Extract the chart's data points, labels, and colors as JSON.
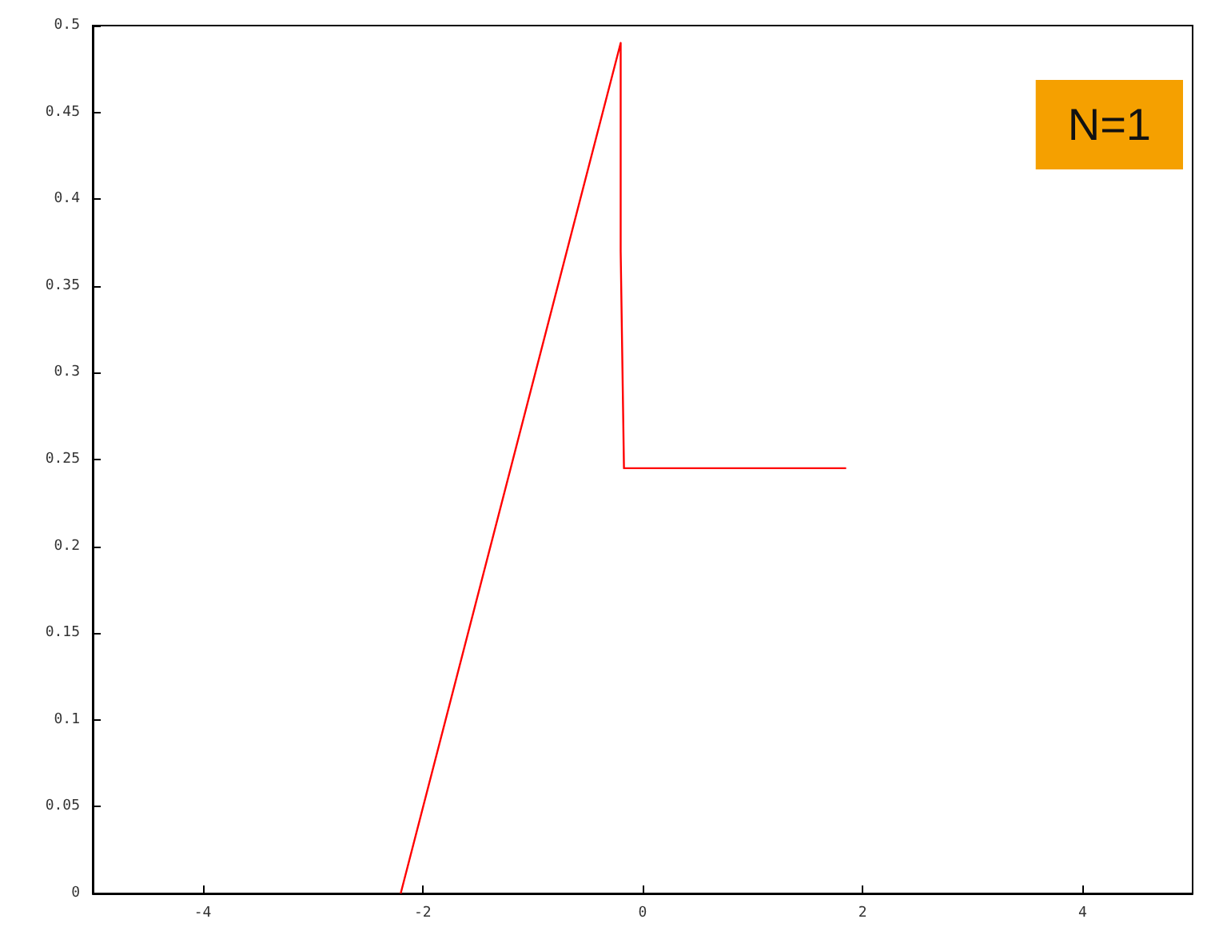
{
  "chart_data": {
    "type": "line",
    "x": [
      -2.2,
      -0.2,
      -0.2,
      -0.17,
      1.85
    ],
    "series": [
      {
        "color": "#ff0000",
        "values": [
          0,
          0.49,
          0.37,
          0.245,
          0.245
        ]
      }
    ],
    "xlim": [
      -5,
      5
    ],
    "xticks": [
      -4,
      -2,
      0,
      2,
      4
    ],
    "ylim": [
      0,
      0.5
    ],
    "yticks": [
      0,
      0.05,
      0.1,
      0.15,
      0.2,
      0.25,
      0.3,
      0.35,
      0.4,
      0.45,
      0.5
    ],
    "grid": false,
    "marker": "none",
    "line_style": "solid",
    "annotations": [
      "N=1"
    ]
  }
}
